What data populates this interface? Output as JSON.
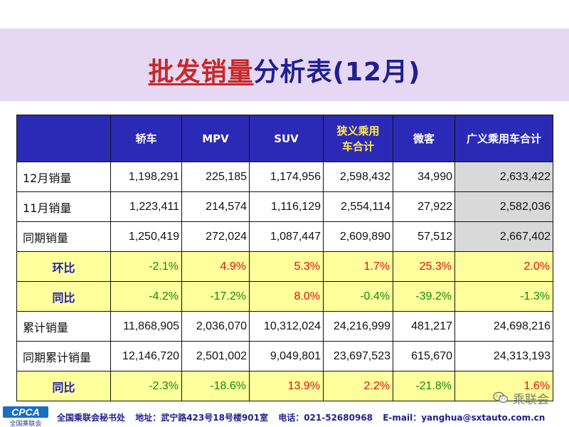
{
  "title": {
    "part1": "批发销量",
    "part2": "分析表(12月)"
  },
  "table": {
    "headers": [
      "",
      "轿车",
      "MPV",
      "SUV",
      "狭义乘用\n车合计",
      "微客",
      "广义乘用车合计"
    ],
    "rows": [
      {
        "label": "12月销量",
        "values": [
          "1,198,291",
          "225,185",
          "1,174,956",
          "2,598,432",
          "34,990",
          "2,633,422"
        ]
      },
      {
        "label": "11月销量",
        "values": [
          "1,223,411",
          "214,574",
          "1,116,129",
          "2,554,114",
          "27,922",
          "2,582,036"
        ]
      },
      {
        "label": "同期销量",
        "values": [
          "1,250,419",
          "272,024",
          "1,087,447",
          "2,609,890",
          "57,512",
          "2,667,402"
        ]
      },
      {
        "label": "环比",
        "values": [
          "-2.1%",
          "4.9%",
          "5.3%",
          "1.7%",
          "25.3%",
          "2.0%"
        ]
      },
      {
        "label": "同比",
        "values": [
          "-4.2%",
          "-17.2%",
          "8.0%",
          "-0.4%",
          "-39.2%",
          "-1.3%"
        ]
      },
      {
        "label": "累计销量",
        "values": [
          "11,868,905",
          "2,036,070",
          "10,312,024",
          "24,216,999",
          "481,217",
          "24,698,216"
        ]
      },
      {
        "label": "同期累计销量",
        "values": [
          "12,146,720",
          "2,501,002",
          "9,049,801",
          "23,697,523",
          "615,670",
          "24,313,193"
        ]
      },
      {
        "label": "同比",
        "values": [
          "-2.3%",
          "-18.6%",
          "13.9%",
          "2.2%",
          "-21.8%",
          "1.6%"
        ]
      }
    ]
  },
  "colors": {
    "header_bg": "#2b2ab6",
    "percent_row_bg": "#ffff9c",
    "positive": "#e01010",
    "negative": "#108a10",
    "title_band": "#e6d8f3"
  },
  "footer": {
    "logo_text": "CPCA",
    "logo_org": "全国乘联会",
    "org": "全国乘联会秘书处",
    "address": "地址：武宁路423号18号楼901室",
    "phone": "电话：021-52680968",
    "email": "E-mail：yanghua@sxtauto.com.cn"
  },
  "watermark": {
    "icon": "wechat-icon",
    "text": "乘联会"
  }
}
